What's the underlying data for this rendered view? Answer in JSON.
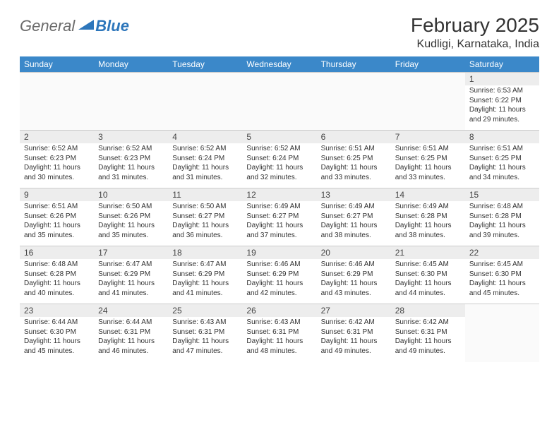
{
  "brand": {
    "part1": "General",
    "part2": "Blue",
    "color_gray": "#6a6a6a",
    "color_blue": "#2d76bb"
  },
  "title": "February 2025",
  "location": "Kudligi, Karnataka, India",
  "header_bg": "#3b88c9",
  "daynum_bg": "#ededed",
  "weekdays": [
    "Sunday",
    "Monday",
    "Tuesday",
    "Wednesday",
    "Thursday",
    "Friday",
    "Saturday"
  ],
  "weeks": [
    [
      null,
      null,
      null,
      null,
      null,
      null,
      {
        "n": "1",
        "sunrise": "6:53 AM",
        "sunset": "6:22 PM",
        "daylight": "11 hours and 29 minutes."
      }
    ],
    [
      {
        "n": "2",
        "sunrise": "6:52 AM",
        "sunset": "6:23 PM",
        "daylight": "11 hours and 30 minutes."
      },
      {
        "n": "3",
        "sunrise": "6:52 AM",
        "sunset": "6:23 PM",
        "daylight": "11 hours and 31 minutes."
      },
      {
        "n": "4",
        "sunrise": "6:52 AM",
        "sunset": "6:24 PM",
        "daylight": "11 hours and 31 minutes."
      },
      {
        "n": "5",
        "sunrise": "6:52 AM",
        "sunset": "6:24 PM",
        "daylight": "11 hours and 32 minutes."
      },
      {
        "n": "6",
        "sunrise": "6:51 AM",
        "sunset": "6:25 PM",
        "daylight": "11 hours and 33 minutes."
      },
      {
        "n": "7",
        "sunrise": "6:51 AM",
        "sunset": "6:25 PM",
        "daylight": "11 hours and 33 minutes."
      },
      {
        "n": "8",
        "sunrise": "6:51 AM",
        "sunset": "6:25 PM",
        "daylight": "11 hours and 34 minutes."
      }
    ],
    [
      {
        "n": "9",
        "sunrise": "6:51 AM",
        "sunset": "6:26 PM",
        "daylight": "11 hours and 35 minutes."
      },
      {
        "n": "10",
        "sunrise": "6:50 AM",
        "sunset": "6:26 PM",
        "daylight": "11 hours and 35 minutes."
      },
      {
        "n": "11",
        "sunrise": "6:50 AM",
        "sunset": "6:27 PM",
        "daylight": "11 hours and 36 minutes."
      },
      {
        "n": "12",
        "sunrise": "6:49 AM",
        "sunset": "6:27 PM",
        "daylight": "11 hours and 37 minutes."
      },
      {
        "n": "13",
        "sunrise": "6:49 AM",
        "sunset": "6:27 PM",
        "daylight": "11 hours and 38 minutes."
      },
      {
        "n": "14",
        "sunrise": "6:49 AM",
        "sunset": "6:28 PM",
        "daylight": "11 hours and 38 minutes."
      },
      {
        "n": "15",
        "sunrise": "6:48 AM",
        "sunset": "6:28 PM",
        "daylight": "11 hours and 39 minutes."
      }
    ],
    [
      {
        "n": "16",
        "sunrise": "6:48 AM",
        "sunset": "6:28 PM",
        "daylight": "11 hours and 40 minutes."
      },
      {
        "n": "17",
        "sunrise": "6:47 AM",
        "sunset": "6:29 PM",
        "daylight": "11 hours and 41 minutes."
      },
      {
        "n": "18",
        "sunrise": "6:47 AM",
        "sunset": "6:29 PM",
        "daylight": "11 hours and 41 minutes."
      },
      {
        "n": "19",
        "sunrise": "6:46 AM",
        "sunset": "6:29 PM",
        "daylight": "11 hours and 42 minutes."
      },
      {
        "n": "20",
        "sunrise": "6:46 AM",
        "sunset": "6:29 PM",
        "daylight": "11 hours and 43 minutes."
      },
      {
        "n": "21",
        "sunrise": "6:45 AM",
        "sunset": "6:30 PM",
        "daylight": "11 hours and 44 minutes."
      },
      {
        "n": "22",
        "sunrise": "6:45 AM",
        "sunset": "6:30 PM",
        "daylight": "11 hours and 45 minutes."
      }
    ],
    [
      {
        "n": "23",
        "sunrise": "6:44 AM",
        "sunset": "6:30 PM",
        "daylight": "11 hours and 45 minutes."
      },
      {
        "n": "24",
        "sunrise": "6:44 AM",
        "sunset": "6:31 PM",
        "daylight": "11 hours and 46 minutes."
      },
      {
        "n": "25",
        "sunrise": "6:43 AM",
        "sunset": "6:31 PM",
        "daylight": "11 hours and 47 minutes."
      },
      {
        "n": "26",
        "sunrise": "6:43 AM",
        "sunset": "6:31 PM",
        "daylight": "11 hours and 48 minutes."
      },
      {
        "n": "27",
        "sunrise": "6:42 AM",
        "sunset": "6:31 PM",
        "daylight": "11 hours and 49 minutes."
      },
      {
        "n": "28",
        "sunrise": "6:42 AM",
        "sunset": "6:31 PM",
        "daylight": "11 hours and 49 minutes."
      },
      null
    ]
  ],
  "labels": {
    "sunrise": "Sunrise:",
    "sunset": "Sunset:",
    "daylight": "Daylight:"
  }
}
